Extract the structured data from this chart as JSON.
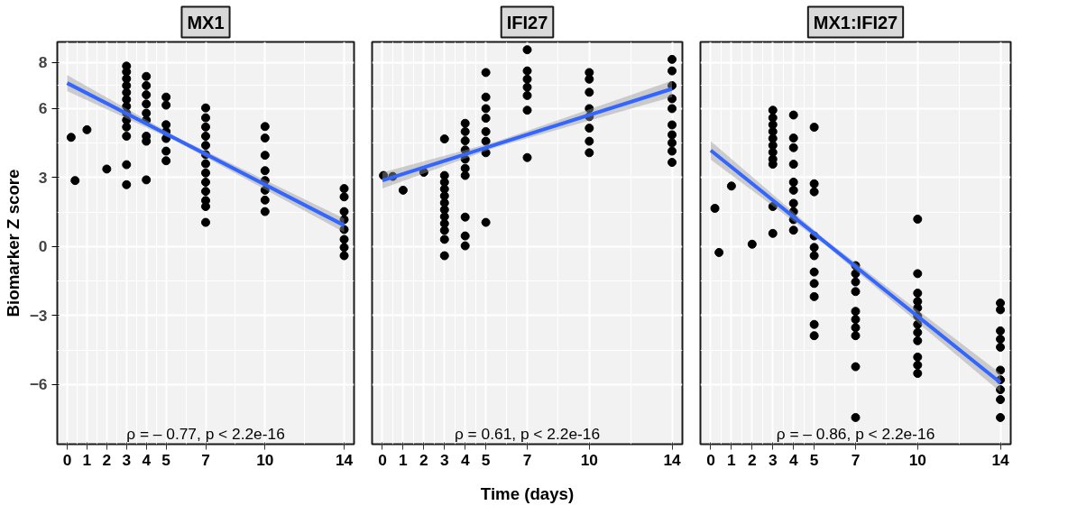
{
  "chart_data": [
    {
      "type": "scatter",
      "title": "MX1",
      "ylabel": "Biomarker Z score",
      "xlim": [
        -0.5,
        14.5
      ],
      "ylim": [
        -8.6,
        8.9
      ],
      "xticks": [
        0,
        1,
        2,
        3,
        4,
        5,
        7,
        10,
        14
      ],
      "yticks": [
        -6,
        -3,
        0,
        3,
        6,
        8
      ],
      "grid": true,
      "annotations": [
        "ρ = – 0.77, p < 2.2e-16"
      ],
      "series": [
        {
          "marker": "circle",
          "color": "#000000",
          "x": [
            0.2,
            0.4,
            1,
            2,
            3,
            3,
            3,
            3,
            3,
            3,
            3,
            3,
            3,
            3,
            3,
            3,
            3,
            4,
            4,
            4,
            4,
            4,
            4,
            4,
            4,
            4,
            5,
            5,
            5,
            5,
            5,
            5,
            5,
            7,
            7,
            7,
            7,
            7,
            7,
            7,
            7,
            7,
            7,
            7,
            7,
            7,
            10,
            10,
            10,
            10,
            10,
            10,
            10,
            10,
            14,
            14,
            14,
            14,
            14,
            14,
            14,
            14
          ],
          "values": [
            4.75,
            2.87,
            5.08,
            3.37,
            7.85,
            7.6,
            7.3,
            7.0,
            6.7,
            6.4,
            6.1,
            5.8,
            5.5,
            5.2,
            4.8,
            3.56,
            2.69,
            7.4,
            7.0,
            6.6,
            6.2,
            5.8,
            5.5,
            4.8,
            4.58,
            2.9,
            6.5,
            6.15,
            5.3,
            5.0,
            4.7,
            4.15,
            3.73,
            6.03,
            5.6,
            5.2,
            4.8,
            4.4,
            4.0,
            3.6,
            3.2,
            2.8,
            2.4,
            2.0,
            1.74,
            1.05,
            5.22,
            4.72,
            3.97,
            3.3,
            2.87,
            2.45,
            2.02,
            1.52,
            2.52,
            2.16,
            1.52,
            1.17,
            0.74,
            0.31,
            -0.04,
            -0.4
          ]
        },
        {
          "type": "line",
          "color": "#3366ff",
          "x": [
            0,
            5.5,
            14
          ],
          "values": [
            7.11,
            4.68,
            0.92
          ],
          "lower": [
            6.76,
            4.58,
            0.62
          ],
          "upper": [
            7.46,
            4.78,
            1.22
          ]
        }
      ]
    },
    {
      "type": "scatter",
      "title": "IFI27",
      "xlabel": "Time (days)",
      "xlim": [
        -0.5,
        14.5
      ],
      "ylim": [
        -8.6,
        8.9
      ],
      "xticks": [
        0,
        1,
        2,
        3,
        4,
        5,
        7,
        10,
        14
      ],
      "yticks": [
        -6,
        -3,
        0,
        3,
        6,
        8
      ],
      "grid": true,
      "tick_labels": "x",
      "annotations": [
        "ρ = 0.61, p < 2.2e-16"
      ],
      "series": [
        {
          "marker": "circle",
          "color": "#000000",
          "x": [
            0.05,
            0.5,
            1,
            2,
            3,
            3,
            3,
            3,
            3,
            3,
            3,
            3,
            3,
            3,
            3,
            3,
            4,
            4,
            4,
            4,
            4,
            4,
            4,
            4,
            4,
            4,
            5,
            5,
            5,
            5,
            5,
            5,
            5,
            5,
            7,
            7,
            7,
            7,
            7,
            7,
            7,
            10,
            10,
            10,
            10,
            10,
            10,
            10,
            10,
            14,
            14,
            14,
            14,
            14,
            14,
            14,
            14,
            14,
            14
          ],
          "values": [
            3.09,
            3.05,
            2.45,
            3.23,
            4.68,
            3.09,
            2.8,
            2.5,
            2.2,
            1.9,
            1.6,
            1.3,
            1.0,
            0.7,
            0.31,
            -0.4,
            5.36,
            5.0,
            4.6,
            4.2,
            3.8,
            3.4,
            3.09,
            1.28,
            0.46,
            0.03,
            7.57,
            6.5,
            6.0,
            5.58,
            5.0,
            4.58,
            4.08,
            1.05,
            8.56,
            7.64,
            7.28,
            6.93,
            6.57,
            5.93,
            3.87,
            7.57,
            7.28,
            6.71,
            6.0,
            5.65,
            5.15,
            4.58,
            4.08,
            8.14,
            7.64,
            7.0,
            6.43,
            6.0,
            5.29,
            4.86,
            4.51,
            4.15,
            3.66
          ]
        },
        {
          "type": "line",
          "color": "#3366ff",
          "x": [
            0,
            5.5,
            14
          ],
          "values": [
            2.87,
            4.44,
            6.86
          ],
          "lower": [
            2.52,
            4.32,
            6.51
          ],
          "upper": [
            3.22,
            4.56,
            7.21
          ]
        }
      ]
    },
    {
      "type": "scatter",
      "title": "MX1:IFI27",
      "xlim": [
        -0.5,
        14.5
      ],
      "ylim": [
        -8.6,
        8.9
      ],
      "xticks": [
        0,
        1,
        2,
        3,
        4,
        5,
        7,
        10,
        14
      ],
      "yticks": [
        -6,
        -3,
        0,
        3,
        6,
        8
      ],
      "grid": true,
      "tick_labels": "x",
      "annotations": [
        "ρ = – 0.86, p < 2.2e-16"
      ],
      "series": [
        {
          "marker": "circle",
          "color": "#000000",
          "x": [
            0.2,
            0.4,
            1,
            2,
            3,
            3,
            3,
            3,
            3,
            3,
            3,
            3,
            3,
            3,
            3,
            4,
            4,
            4,
            4,
            4,
            4,
            4,
            4,
            4,
            4,
            5,
            5,
            5,
            5,
            5,
            5,
            5,
            5,
            5,
            5,
            5,
            7,
            7,
            7,
            7,
            7,
            7,
            7,
            7,
            7,
            7,
            10,
            10,
            10,
            10,
            10,
            10,
            10,
            10,
            10,
            10,
            10,
            10,
            14,
            14,
            14,
            14,
            14,
            14,
            14,
            14,
            14,
            14
          ],
          "values": [
            1.66,
            -0.26,
            2.63,
            0.1,
            5.93,
            5.6,
            5.3,
            5.0,
            4.7,
            4.4,
            4.1,
            3.8,
            3.58,
            1.74,
            0.57,
            5.72,
            4.72,
            4.3,
            3.58,
            2.8,
            2.45,
            1.88,
            1.52,
            1.17,
            0.71,
            5.19,
            2.73,
            2.38,
            0.46,
            -0.04,
            -0.4,
            -1.11,
            -1.61,
            -2.18,
            -3.39,
            -3.88,
            -0.83,
            -1.18,
            -1.54,
            -1.96,
            -2.82,
            -3.17,
            -3.53,
            -3.88,
            -5.23,
            -7.44,
            1.19,
            -1.18,
            -2.03,
            -2.39,
            -2.67,
            -3.03,
            -3.39,
            -3.74,
            -4.1,
            -4.81,
            -5.16,
            -5.52,
            -2.46,
            -2.75,
            -3.67,
            -4.03,
            -4.38,
            -5.38,
            -5.8,
            -6.23,
            -6.66,
            -7.44
          ]
        },
        {
          "type": "line",
          "color": "#3366ff",
          "x": [
            0,
            5.5,
            14
          ],
          "values": [
            4.18,
            0.21,
            -5.92
          ],
          "lower": [
            3.78,
            0.09,
            -6.32
          ],
          "upper": [
            4.58,
            0.33,
            -5.52
          ]
        }
      ]
    }
  ]
}
